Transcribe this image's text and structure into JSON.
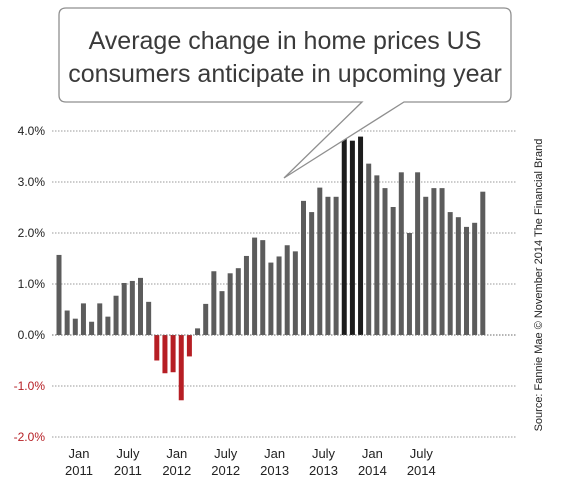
{
  "chart_data": {
    "type": "bar",
    "title": "Average change in home prices US consumers anticipate in upcoming year",
    "title_lines": [
      "Average change in home prices US",
      "consumers anticipate in upcoming year"
    ],
    "source": "Source: Fannie Mae © November 2014 The Financial Brand",
    "ylim": [
      -2.0,
      4.0
    ],
    "y_ticks": [
      {
        "value": 4.0,
        "label": "4.0%"
      },
      {
        "value": 3.0,
        "label": "3.0%"
      },
      {
        "value": 2.0,
        "label": "2.0%"
      },
      {
        "value": 1.0,
        "label": "1.0%"
      },
      {
        "value": 0.0,
        "label": "0.0%"
      },
      {
        "value": -1.0,
        "label": "-1.0%"
      },
      {
        "value": -2.0,
        "label": "-2.0%"
      }
    ],
    "x_ticks": [
      {
        "month_index": 0,
        "line1": "Jan",
        "line2": "2011"
      },
      {
        "month_index": 6,
        "line1": "July",
        "line2": "2011"
      },
      {
        "month_index": 12,
        "line1": "Jan",
        "line2": "2012"
      },
      {
        "month_index": 18,
        "line1": "July",
        "line2": "2012"
      },
      {
        "month_index": 24,
        "line1": "Jan",
        "line2": "2013"
      },
      {
        "month_index": 30,
        "line1": "July",
        "line2": "2013"
      },
      {
        "month_index": 36,
        "line1": "Jan",
        "line2": "2014"
      },
      {
        "month_index": 42,
        "line1": "July",
        "line2": "2014"
      }
    ],
    "values": [
      1.57,
      0.48,
      0.32,
      0.62,
      0.26,
      0.62,
      0.36,
      0.77,
      1.02,
      1.06,
      1.12,
      0.65,
      -0.5,
      -0.75,
      -0.73,
      -1.28,
      -0.42,
      0.13,
      0.61,
      1.25,
      0.86,
      1.21,
      1.31,
      1.55,
      1.91,
      1.86,
      1.42,
      1.54,
      1.76,
      1.64,
      2.63,
      2.41,
      2.89,
      2.71,
      2.71,
      3.89,
      3.81,
      3.89,
      3.36,
      3.13,
      2.88,
      2.51,
      3.19,
      2.0,
      3.19,
      2.71,
      2.88,
      2.88,
      2.41,
      2.31,
      2.12,
      2.2,
      2.81
    ],
    "colors": {
      "positive": "#5c5c5c",
      "highlight": "#1c1c1c",
      "negative": "#b61e24",
      "grid": "#9a9a9a",
      "positive_label": "#222222",
      "negative_label": "#b61e24"
    },
    "highlight_indices": [
      35,
      36,
      37
    ],
    "grid": true,
    "xlabel": "",
    "ylabel": ""
  }
}
